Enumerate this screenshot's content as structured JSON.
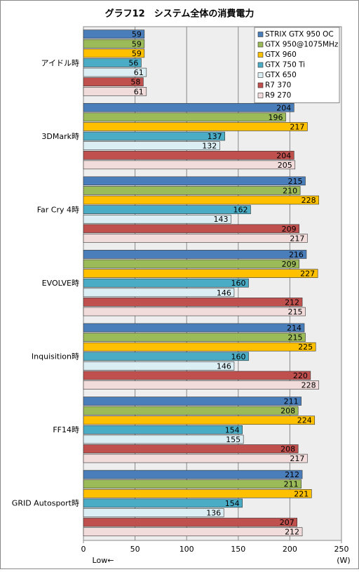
{
  "chart_data": {
    "type": "bar",
    "orientation": "horizontal",
    "title": "グラフ12　システム全体の消費電力",
    "categories": [
      "アイドル時",
      "3DMark時",
      "Far Cry 4時",
      "EVOLVE時",
      "Inquisition時",
      "FF14時",
      "GRID Autosport時"
    ],
    "series": [
      {
        "name": "STRIX GTX 950 OC",
        "color": "#4a7ebb",
        "values": [
          59,
          204,
          215,
          216,
          214,
          211,
          212
        ]
      },
      {
        "name": "GTX 950@1075MHz",
        "color": "#9bbb59",
        "values": [
          59,
          196,
          210,
          209,
          215,
          208,
          211
        ]
      },
      {
        "name": "GTX 960",
        "color": "#ffc000",
        "values": [
          59,
          217,
          228,
          227,
          225,
          224,
          221
        ]
      },
      {
        "name": "GTX 750 Ti",
        "color": "#4bacc6",
        "values": [
          56,
          137,
          162,
          160,
          160,
          154,
          154
        ]
      },
      {
        "name": "GTX 650",
        "color": "#dbeef4",
        "values": [
          61,
          132,
          143,
          146,
          146,
          155,
          136
        ]
      },
      {
        "name": "R7 370",
        "color": "#c0504d",
        "values": [
          58,
          204,
          209,
          212,
          220,
          208,
          207
        ]
      },
      {
        "name": "R9 270",
        "color": "#f2dcdb",
        "values": [
          61,
          205,
          217,
          215,
          228,
          217,
          212
        ]
      }
    ],
    "xlim": [
      0,
      250
    ],
    "xticks": [
      0,
      50,
      100,
      150,
      200,
      250
    ],
    "grid": true,
    "xlabel": "(W)",
    "x_annotation": "Low←",
    "legend": "top-right"
  }
}
